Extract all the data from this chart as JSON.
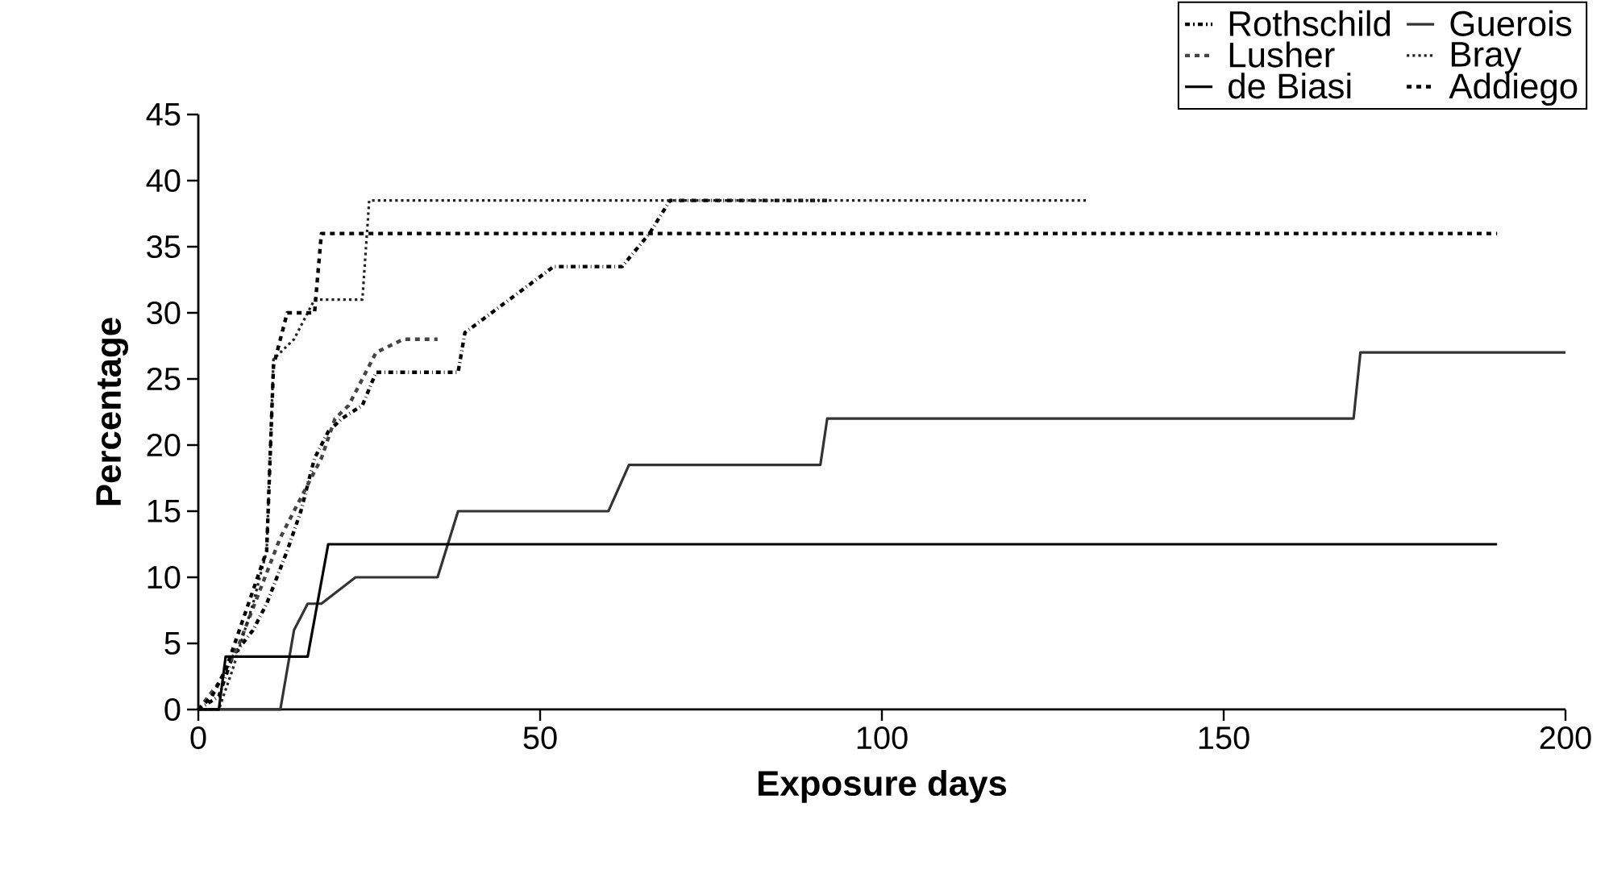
{
  "chart_data": {
    "type": "line",
    "xlabel": "Exposure days",
    "ylabel": "Percentage",
    "xlim": [
      0,
      200
    ],
    "xticks": [
      0,
      50,
      100,
      150,
      200
    ],
    "ylim": [
      0,
      45
    ],
    "yticks": [
      0,
      5,
      10,
      15,
      20,
      25,
      30,
      35,
      40,
      45
    ],
    "grid": false,
    "legend": "top right",
    "series": [
      {
        "name": "Rothschild",
        "color": "#000000",
        "line_style": "dashdot",
        "x": [
          0,
          3,
          5,
          8,
          10,
          13,
          15,
          17,
          19,
          21,
          24,
          26,
          38,
          39,
          52,
          62,
          66,
          69,
          92
        ],
        "values": [
          0,
          1,
          4,
          6,
          8,
          12,
          15,
          19,
          21,
          22,
          23,
          25.5,
          25.5,
          28.5,
          33.5,
          33.5,
          36,
          38.5,
          38.5
        ]
      },
      {
        "name": "Guerois",
        "color": "#333333",
        "line_style": "solid",
        "x": [
          0,
          12,
          14,
          16,
          18,
          23,
          35,
          38,
          60,
          63,
          91,
          92,
          169,
          170,
          200
        ],
        "values": [
          0,
          0,
          6,
          8,
          8,
          10,
          10,
          15,
          15,
          18.5,
          18.5,
          22,
          22,
          27,
          27
        ]
      },
      {
        "name": "Lusher",
        "color": "#444444",
        "line_style": "dashed",
        "x": [
          0,
          3,
          6,
          9,
          12,
          15,
          18,
          20,
          22,
          24,
          26,
          30,
          35
        ],
        "values": [
          0,
          2,
          5,
          9,
          13,
          16,
          19,
          22,
          23,
          25,
          27,
          28,
          28
        ]
      },
      {
        "name": "Bray",
        "color": "#222222",
        "line_style": "dotted",
        "x": [
          0,
          3,
          5,
          8,
          10,
          11,
          14,
          17,
          24,
          25,
          130
        ],
        "values": [
          0,
          0,
          3,
          8,
          12,
          26.5,
          28,
          31,
          31,
          38.5,
          38.5
        ]
      },
      {
        "name": "de Biasi",
        "color": "#000000",
        "line_style": "solid",
        "x": [
          0,
          3,
          4,
          16,
          19,
          190
        ],
        "values": [
          0,
          0,
          4,
          4,
          12.5,
          12.5
        ]
      },
      {
        "name": "Addiego",
        "color": "#000000",
        "line_style": "dashed",
        "x": [
          0,
          2,
          4,
          6,
          8,
          10,
          11,
          13,
          17,
          18,
          190
        ],
        "values": [
          0,
          1,
          3,
          6,
          9,
          12,
          26,
          30,
          30,
          36,
          36
        ]
      }
    ]
  }
}
